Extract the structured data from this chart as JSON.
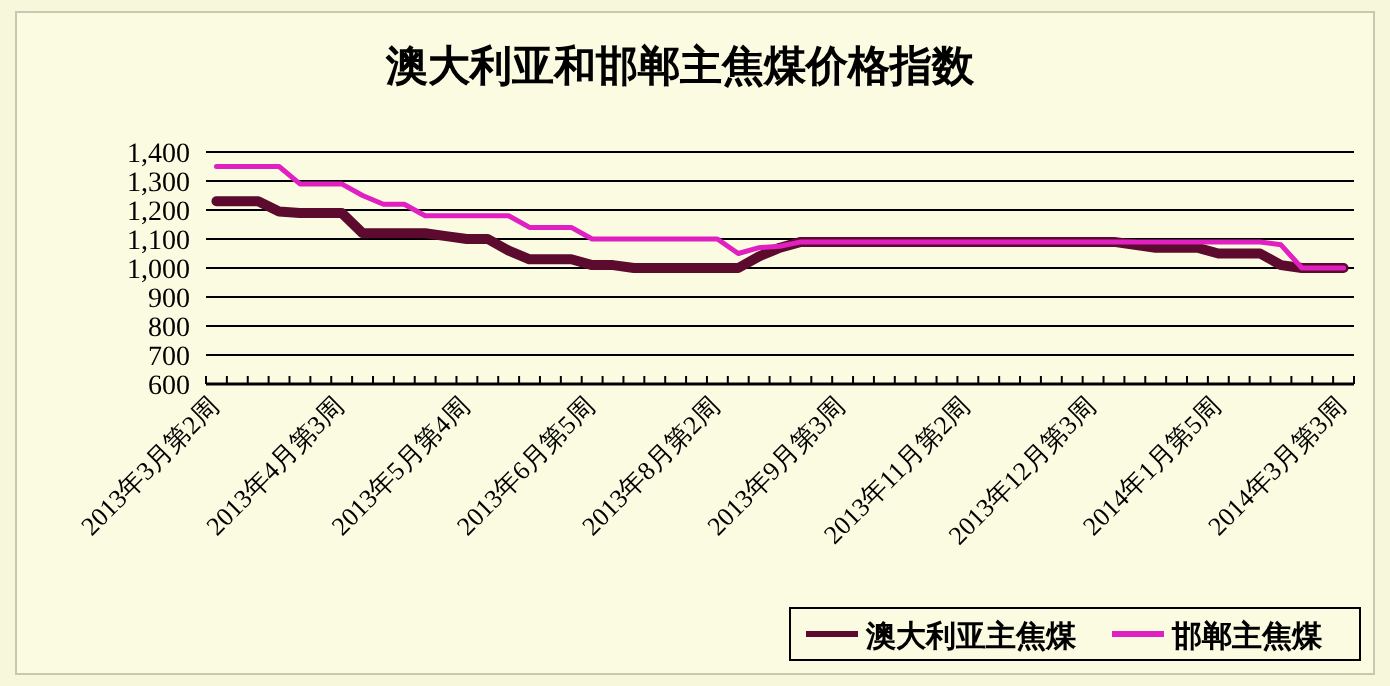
{
  "chart_data": {
    "type": "line",
    "title": "澳大利亚和邯郸主焦煤价格指数",
    "categories": [
      "2013年3月第2周",
      null,
      null,
      null,
      null,
      null,
      "2013年4月第3周",
      null,
      null,
      null,
      null,
      null,
      "2013年5月第4周",
      null,
      null,
      null,
      null,
      null,
      "2013年6月第5周",
      null,
      null,
      null,
      null,
      null,
      "2013年8月第2周",
      null,
      null,
      null,
      null,
      null,
      "2013年9月第3周",
      null,
      null,
      null,
      null,
      null,
      "2013年11月第2周",
      null,
      null,
      null,
      null,
      null,
      "2013年12月第3周",
      null,
      null,
      null,
      null,
      null,
      "2014年1月第5周",
      null,
      null,
      null,
      null,
      null,
      "2014年3月第3周"
    ],
    "series": [
      {
        "name": "澳大利亚主焦煤",
        "color": "#5c0a2e",
        "values": [
          1230,
          1230,
          1230,
          1195,
          1190,
          1190,
          1190,
          1120,
          1120,
          1120,
          1120,
          1110,
          1100,
          1100,
          1060,
          1030,
          1030,
          1030,
          1010,
          1010,
          1000,
          1000,
          1000,
          1000,
          1000,
          1000,
          1040,
          1070,
          1090,
          1090,
          1090,
          1090,
          1090,
          1090,
          1090,
          1090,
          1090,
          1090,
          1090,
          1090,
          1090,
          1090,
          1090,
          1090,
          1080,
          1070,
          1070,
          1070,
          1050,
          1050,
          1050,
          1010,
          1000,
          1000,
          1000
        ]
      },
      {
        "name": "邯郸主焦煤",
        "color": "#e020c0",
        "values": [
          1350,
          1350,
          1350,
          1350,
          1290,
          1290,
          1290,
          1250,
          1220,
          1220,
          1180,
          1180,
          1180,
          1180,
          1180,
          1140,
          1140,
          1140,
          1100,
          1100,
          1100,
          1100,
          1100,
          1100,
          1100,
          1050,
          1070,
          1075,
          1090,
          1090,
          1090,
          1090,
          1090,
          1090,
          1090,
          1090,
          1090,
          1090,
          1090,
          1090,
          1090,
          1090,
          1090,
          1090,
          1090,
          1090,
          1090,
          1090,
          1090,
          1090,
          1090,
          1080,
          1000,
          1000,
          1000
        ]
      }
    ],
    "ylim": [
      600,
      1400
    ],
    "yticks": [
      600,
      700,
      800,
      900,
      {
        "value": 1000,
        "label": "1,000"
      },
      {
        "value": 1100,
        "label": "1,100"
      },
      {
        "value": 1200,
        "label": "1,200"
      },
      {
        "value": 1300,
        "label": "1,300"
      },
      {
        "value": 1400,
        "label": "1,400"
      }
    ],
    "grid": "y",
    "legend": "bottom right",
    "marker": "none",
    "line_style": "solid"
  }
}
